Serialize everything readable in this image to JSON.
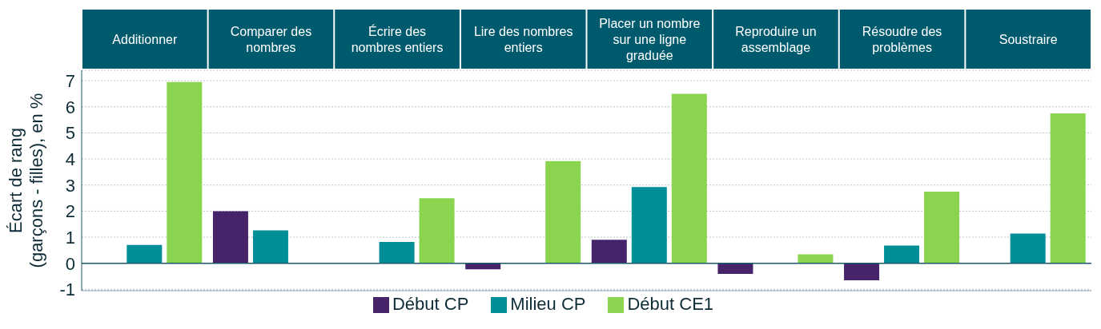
{
  "chart_data": {
    "type": "bar",
    "categories": [
      "Additionner",
      "Comparer des nombres",
      "Écrire des nombres entiers",
      "Lire des nombres entiers",
      "Placer un nombre sur une ligne graduée",
      "Reproduire un assemblage",
      "Résoudre des problèmes",
      "Soustraire"
    ],
    "ylabel": "Écart de rang\n(garçons - filles), en %",
    "series": [
      {
        "name": "Début CP",
        "color": "#45246a",
        "values": [
          null,
          2.0,
          null,
          -0.23,
          0.9,
          -0.41,
          -0.65,
          null
        ]
      },
      {
        "name": "Milieu CP",
        "color": "#008e97",
        "values": [
          0.7,
          1.26,
          0.82,
          null,
          2.92,
          null,
          0.68,
          1.14
        ]
      },
      {
        "name": "Début CE1",
        "color": "#8ad44f",
        "values": [
          6.95,
          null,
          2.49,
          3.92,
          6.5,
          0.34,
          2.75,
          5.75
        ]
      }
    ],
    "ylim": [
      -1.05,
      7.4
    ],
    "yticks": [
      -1,
      0,
      1,
      2,
      3,
      4,
      5,
      6,
      7
    ],
    "ref_lines": [
      {
        "axis": "y",
        "value": 0,
        "color": "#1d5a6a"
      }
    ],
    "grid": "y",
    "legend": "bottom"
  }
}
